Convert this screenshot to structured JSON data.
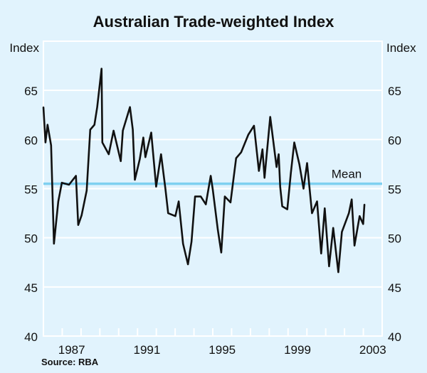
{
  "chart_data": {
    "type": "line",
    "title": "Australian Trade-weighted Index",
    "ylabel_left": "Index",
    "ylabel_right": "Index",
    "xlabel": "",
    "xlim": [
      1986,
      2004
    ],
    "ylim": [
      40,
      70
    ],
    "yticks": [
      40,
      45,
      50,
      55,
      60,
      65
    ],
    "xtick_labels": [
      {
        "year": 1987,
        "label": "1987"
      },
      {
        "year": 1991,
        "label": "1991"
      },
      {
        "year": 1995,
        "label": "1995"
      },
      {
        "year": 1999,
        "label": "1999"
      },
      {
        "year": 2003,
        "label": "2003"
      }
    ],
    "grid": true,
    "mean": {
      "label": "Mean",
      "value": 55.5,
      "color": "#7fd0f0"
    },
    "series": [
      {
        "name": "Trade-weighted Index",
        "color": "#111111",
        "points": [
          [
            1986.0,
            63.3
          ],
          [
            1986.11,
            59.7
          ],
          [
            1986.22,
            61.5
          ],
          [
            1986.41,
            59.4
          ],
          [
            1986.56,
            49.4
          ],
          [
            1986.79,
            53.7
          ],
          [
            1986.98,
            55.6
          ],
          [
            1987.36,
            55.4
          ],
          [
            1987.73,
            56.3
          ],
          [
            1987.85,
            51.3
          ],
          [
            1988.03,
            52.3
          ],
          [
            1988.3,
            54.8
          ],
          [
            1988.49,
            61.0
          ],
          [
            1988.71,
            61.5
          ],
          [
            1988.86,
            63.3
          ],
          [
            1989.09,
            67.2
          ],
          [
            1989.13,
            59.7
          ],
          [
            1989.47,
            58.5
          ],
          [
            1989.73,
            60.9
          ],
          [
            1990.11,
            57.8
          ],
          [
            1990.22,
            60.9
          ],
          [
            1990.6,
            63.3
          ],
          [
            1990.75,
            61.0
          ],
          [
            1990.86,
            55.9
          ],
          [
            1991.12,
            58.0
          ],
          [
            1991.31,
            60.2
          ],
          [
            1991.42,
            58.2
          ],
          [
            1991.73,
            60.7
          ],
          [
            1991.99,
            55.2
          ],
          [
            1992.25,
            58.5
          ],
          [
            1992.48,
            55.0
          ],
          [
            1992.63,
            52.5
          ],
          [
            1993.01,
            52.2
          ],
          [
            1993.19,
            53.7
          ],
          [
            1993.42,
            49.4
          ],
          [
            1993.68,
            47.3
          ],
          [
            1993.87,
            49.6
          ],
          [
            1994.06,
            54.2
          ],
          [
            1994.36,
            54.2
          ],
          [
            1994.63,
            53.4
          ],
          [
            1994.89,
            56.3
          ],
          [
            1995.0,
            54.9
          ],
          [
            1995.27,
            50.8
          ],
          [
            1995.45,
            48.5
          ],
          [
            1995.64,
            54.2
          ],
          [
            1995.94,
            53.6
          ],
          [
            1996.24,
            58.1
          ],
          [
            1996.51,
            58.7
          ],
          [
            1996.89,
            60.5
          ],
          [
            1997.19,
            61.4
          ],
          [
            1997.45,
            56.8
          ],
          [
            1997.64,
            59.0
          ],
          [
            1997.75,
            56.1
          ],
          [
            1998.05,
            62.3
          ],
          [
            1998.39,
            57.2
          ],
          [
            1998.5,
            58.5
          ],
          [
            1998.58,
            55.2
          ],
          [
            1998.69,
            53.2
          ],
          [
            1998.96,
            52.9
          ],
          [
            1999.15,
            56.6
          ],
          [
            1999.33,
            59.7
          ],
          [
            1999.6,
            57.5
          ],
          [
            1999.82,
            55.0
          ],
          [
            2000.01,
            57.6
          ],
          [
            2000.27,
            52.5
          ],
          [
            2000.54,
            53.7
          ],
          [
            2000.76,
            48.4
          ],
          [
            2000.95,
            53.0
          ],
          [
            2001.18,
            47.1
          ],
          [
            2001.4,
            51.0
          ],
          [
            2001.67,
            46.5
          ],
          [
            2001.86,
            50.6
          ],
          [
            2002.23,
            52.5
          ],
          [
            2002.38,
            53.9
          ],
          [
            2002.53,
            49.2
          ],
          [
            2002.8,
            52.2
          ],
          [
            2002.99,
            51.4
          ],
          [
            2003.06,
            53.4
          ]
        ]
      }
    ],
    "source": "Source: RBA"
  }
}
